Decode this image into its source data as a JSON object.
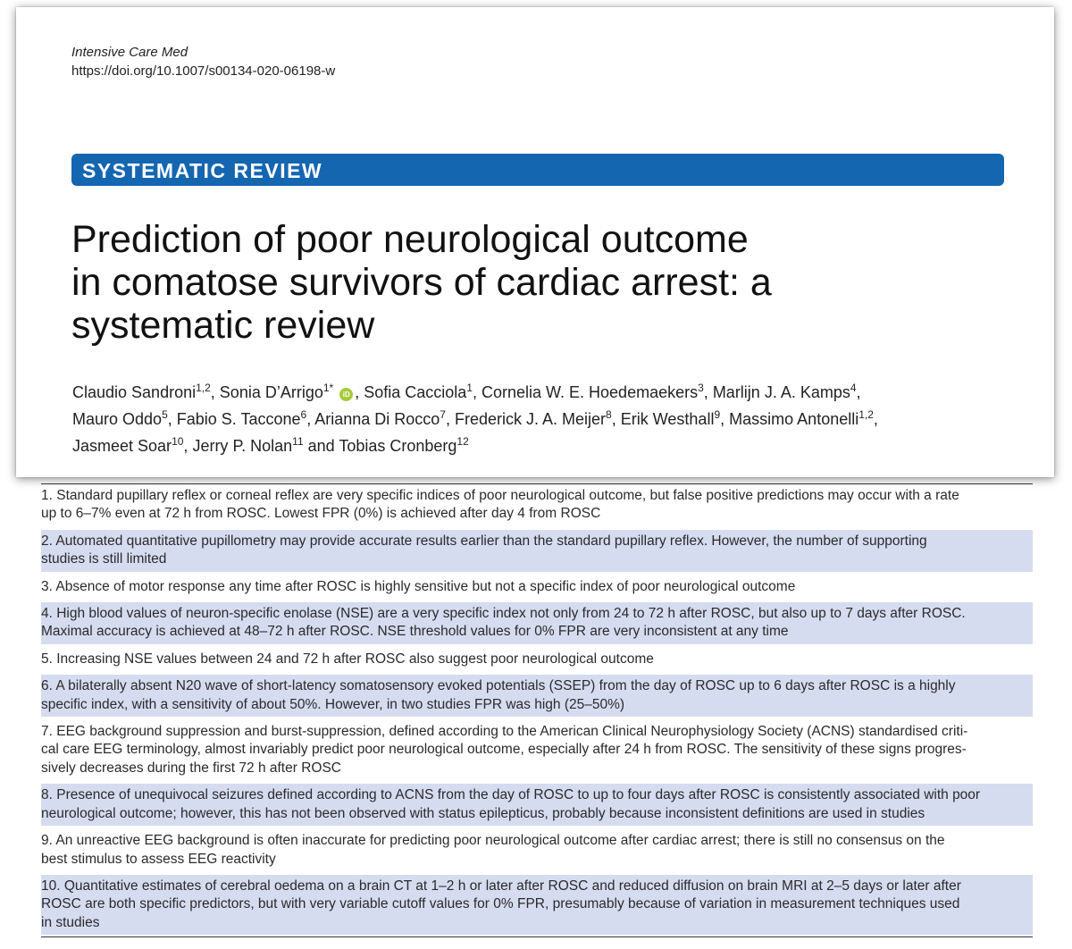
{
  "header": {
    "journal": "Intensive Care Med",
    "doi": "https://doi.org/10.1007/s00134-020-06198-w",
    "article_type": "SYSTEMATIC REVIEW",
    "title_lines": [
      "Prediction of poor neurological outcome",
      "in comatose survivors of cardiac arrest: a",
      "systematic review"
    ],
    "authors": {
      "a1": "Claudio Sandroni",
      "a1_sup": "1,2",
      "a2": "Sonia D’Arrigo",
      "a2_sup": "1*",
      "orcid_icon": "orcid-icon",
      "a3": "Sofia Cacciola",
      "a3_sup": "1",
      "a4": "Cornelia W. E. Hoedemaekers",
      "a4_sup": "3",
      "a5": "Marlijn J. A. Kamps",
      "a5_sup": "4",
      "a6": "Mauro Oddo",
      "a6_sup": "5",
      "a7": "Fabio S. Taccone",
      "a7_sup": "6",
      "a8": "Arianna Di Rocco",
      "a8_sup": "7",
      "a9": "Frederick J. A. Meijer",
      "a9_sup": "8",
      "a10": "Erik Westhall",
      "a10_sup": "9",
      "a11": "Massimo Antonelli",
      "a11_sup": "1,2",
      "a12": "Jasmeet Soar",
      "a12_sup": "10",
      "a13": "Jerry P. Nolan",
      "a13_sup": "11",
      "a14": "Tobias Cronberg",
      "a14_sup": "12"
    }
  },
  "findings": [
    {
      "lines": [
        "1. Standard pupillary reflex or corneal reflex are very specific indices of poor neurological outcome, but false positive predictions may occur with a rate",
        "up to 6–7% even at 72 h from ROSC. Lowest FPR (0%) is achieved after day 4 from ROSC"
      ],
      "shaded": false
    },
    {
      "lines": [
        "2. Automated quantitative pupillometry may provide accurate results earlier than the standard pupillary reflex. However, the number of supporting",
        "studies is still limited"
      ],
      "shaded": true
    },
    {
      "lines": [
        "3. Absence of motor response any time after ROSC is highly sensitive but not a specific index of poor neurological outcome"
      ],
      "shaded": false
    },
    {
      "lines": [
        "4. High blood values of neuron-specific enolase (NSE) are a very specific index not only from 24 to 72 h after ROSC, but also up to 7 days after ROSC.",
        "Maximal accuracy is achieved at 48–72 h after ROSC. NSE threshold values for 0% FPR are very inconsistent at any time"
      ],
      "shaded": true
    },
    {
      "lines": [
        "5. Increasing NSE values between 24 and 72 h after ROSC also suggest poor neurological outcome"
      ],
      "shaded": false
    },
    {
      "lines": [
        "6. A bilaterally absent N20 wave of short-latency somatosensory evoked potentials (SSEP) from the day of ROSC up to 6 days after ROSC is a highly",
        "specific index, with a sensitivity of about 50%. However, in two studies FPR was high (25–50%)"
      ],
      "shaded": true
    },
    {
      "lines": [
        "7. EEG background suppression and burst-suppression, defined according to the American Clinical Neurophysiology Society (ACNS) standardised criti-",
        "cal care EEG terminology, almost invariably predict poor neurological outcome, especially after 24 h from ROSC. The sensitivity of these signs progres-",
        "sively decreases during the first 72 h after ROSC"
      ],
      "shaded": false
    },
    {
      "lines": [
        "8. Presence of unequivocal seizures defined according to ACNS from the day of ROSC to up to four days after ROSC is consistently associated with poor",
        "neurological outcome; however, this has not been observed with status epilepticus, probably because inconsistent definitions are used in studies"
      ],
      "shaded": true
    },
    {
      "lines": [
        "9. An unreactive EEG background is often inaccurate for predicting poor neurological outcome after cardiac arrest; there is still no consensus on the",
        "best stimulus to assess EEG reactivity"
      ],
      "shaded": false
    },
    {
      "lines": [
        "10. Quantitative estimates of cerebral oedema on a brain CT at 1–2 h or later after ROSC and reduced diffusion on brain MRI at 2–5 days or later after",
        "ROSC are both specific predictors, but with very variable cutoff values for 0% FPR, presumably because of variation in measurement techniques used",
        "in studies"
      ],
      "shaded": true
    }
  ],
  "colors": {
    "banner": "#1566b0",
    "row_shade": "#d6dcf0",
    "orcid": "#a6c93b"
  }
}
